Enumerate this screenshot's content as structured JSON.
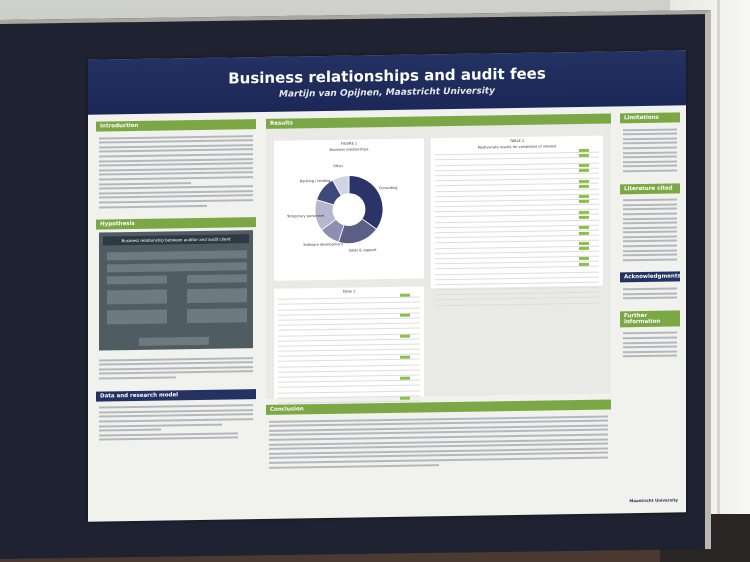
{
  "poster": {
    "title": "Business relationships and audit fees",
    "author": "Martijn van Opijnen, Maastricht University",
    "sections": {
      "introduction": "Introduction",
      "hypothesis": "Hypothesis",
      "data": "Data and research model",
      "results": "Results",
      "conclusion": "Conclusion",
      "limitations": "Limitations",
      "literature": "Literature cited",
      "acknowledgments": "Acknowledgments",
      "further": "Further information"
    },
    "hypothesis_title": "Business relationship between auditor and audit client",
    "figure_caption": "FIGURE 1",
    "figure_subcaption": "Business relationships",
    "table2_caption": "TABLE 2",
    "table2_subcaption": "Multivariate results for variable(s) of interest",
    "table1_caption": "Table 1",
    "university": "Maastricht University"
  },
  "chart_data": {
    "type": "pie",
    "title": "Business relationships",
    "categories": [
      "Consulting",
      "Sales & support",
      "Software development",
      "Temporary personnel",
      "Banking / lending",
      "Other"
    ],
    "values": [
      35,
      20,
      10,
      15,
      12,
      8
    ]
  }
}
